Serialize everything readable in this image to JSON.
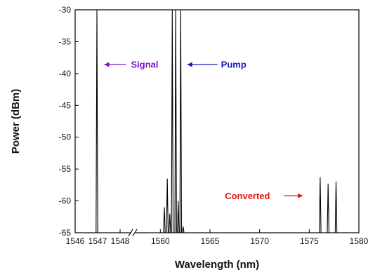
{
  "chart_data": {
    "type": "line",
    "title": "",
    "xlabel": "Wavelength (nm)",
    "ylabel": "Power  (dBm)",
    "ylim": [
      -65,
      -30
    ],
    "grid": false,
    "x_axis": {
      "broken": true,
      "segments": [
        {
          "range": [
            1546,
            1548.5
          ],
          "ticks": [
            1546,
            1547,
            1548
          ]
        },
        {
          "range": [
            1557.5,
            1580
          ],
          "ticks": [
            1560,
            1565,
            1570,
            1575,
            1580
          ]
        }
      ]
    },
    "y_ticks": [
      -30,
      -35,
      -40,
      -45,
      -50,
      -55,
      -60,
      -65
    ],
    "series": [
      {
        "color": "#000000",
        "peaks": [
          {
            "x": 1546.97,
            "y": -30
          },
          {
            "x": 1560.4,
            "y": -61
          },
          {
            "x": 1560.7,
            "y": -56.5
          },
          {
            "x": 1560.95,
            "y": -62
          },
          {
            "x": 1561.2,
            "y": -30
          },
          {
            "x": 1561.55,
            "y": -30
          },
          {
            "x": 1561.8,
            "y": -60
          },
          {
            "x": 1562.05,
            "y": -30
          },
          {
            "x": 1562.3,
            "y": -64
          },
          {
            "x": 1576.1,
            "y": -56.3
          },
          {
            "x": 1576.9,
            "y": -57.3
          },
          {
            "x": 1577.7,
            "y": -57
          }
        ]
      }
    ],
    "annotations": [
      {
        "text": "Signal",
        "color": "#7b12c8",
        "x": 1547.2,
        "y": -38.6
      },
      {
        "text": "Pump",
        "color": "#1515c8",
        "x": 1562.5,
        "y": -38.6
      },
      {
        "text": "Converted",
        "color": "#e01818",
        "x": 1566.5,
        "y": -59.2
      }
    ]
  }
}
